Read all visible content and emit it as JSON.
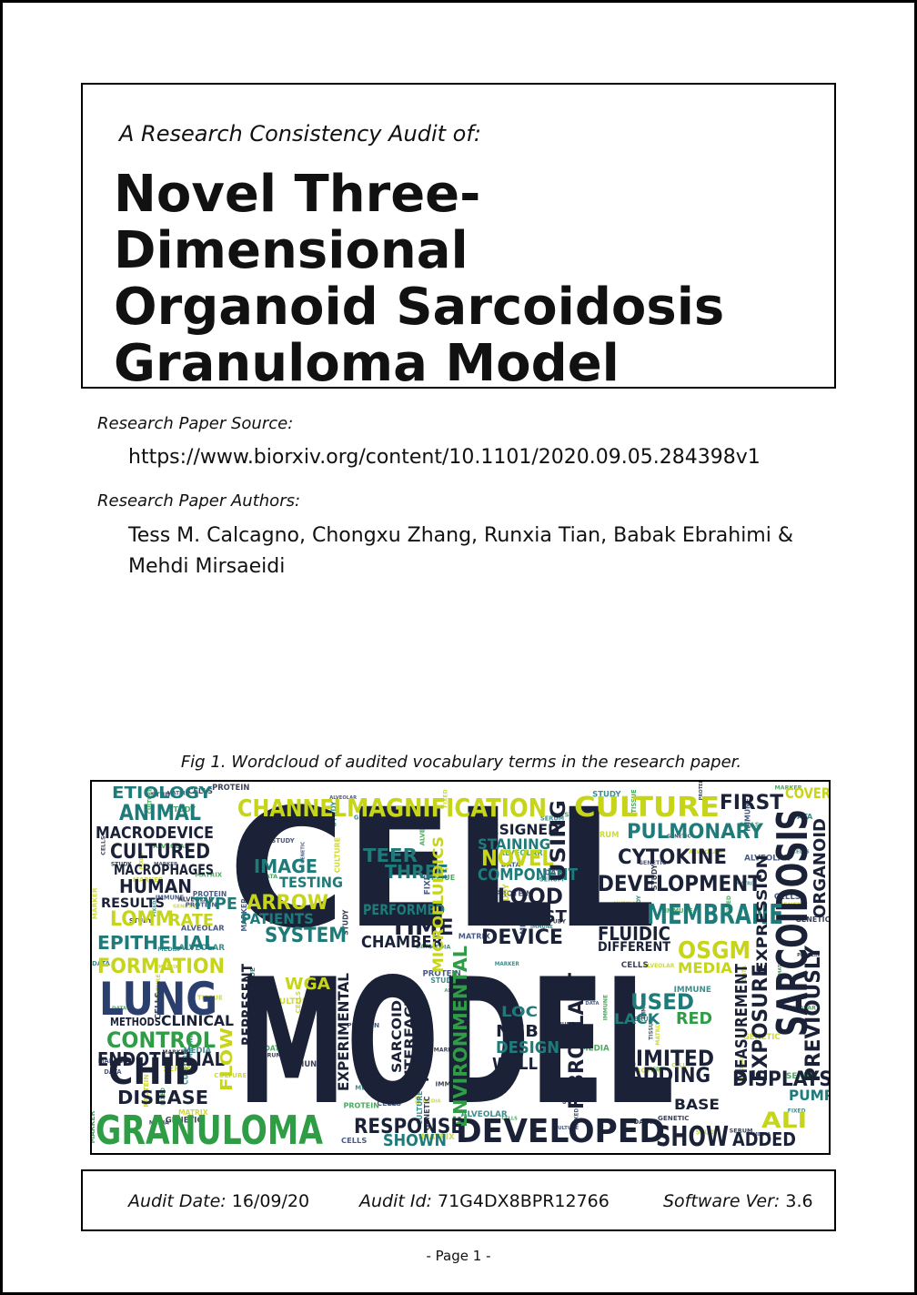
{
  "header": {
    "audit_of": "A Research Consistency Audit of:",
    "title_lines": [
      "Novel Three-Dimensional",
      "Organoid Sarcoidosis",
      "Granuloma Model"
    ]
  },
  "source": {
    "label": "Research Paper Source:",
    "url": "https://www.biorxiv.org/content/10.1101/2020.09.05.284398v1"
  },
  "authors": {
    "label": "Research Paper Authors:",
    "line1": "Tess M. Calcagno, Chongxu Zhang, Runxia Tian, Babak Ebrahimi &",
    "line2": "Mehdi Mirsaeidi"
  },
  "figure": {
    "caption": "Fig 1. Wordcloud of audited vocabulary terms in the research paper.",
    "colors": {
      "dark": "#1b2238",
      "teal": "#1f7b7a",
      "green": "#2f9c46",
      "yellow": "#c6d41a",
      "navy": "#2a3f6e"
    },
    "words": [
      {
        "text": "CELL",
        "color": "dark",
        "size": 2.0
      },
      {
        "text": "MODEL",
        "color": "dark",
        "size": 2.0
      },
      {
        "text": "SARCOIDOSIS",
        "color": "dark",
        "size": 1.0
      },
      {
        "text": "GRANULOMA",
        "color": "green",
        "size": 1.0
      },
      {
        "text": "LUNG",
        "color": "navy",
        "size": 1.0
      },
      {
        "text": "DEVELOPED",
        "color": "dark",
        "size": 1.0
      },
      {
        "text": "MAGNIFICATION",
        "color": "yellow",
        "size": 1.0
      },
      {
        "text": "CHANNEL",
        "color": "yellow",
        "size": 1.0
      },
      {
        "text": "CULTURE",
        "color": "yellow",
        "size": 1.0
      },
      {
        "text": "MEMBRANE",
        "color": "teal",
        "size": 1.0
      },
      {
        "text": "DEVELOPMENT",
        "color": "dark",
        "size": 1.0
      },
      {
        "text": "PULMONARY",
        "color": "teal",
        "size": 1.0
      },
      {
        "text": "CYTOKINE",
        "color": "dark",
        "size": 1.0
      },
      {
        "text": "CHIP",
        "color": "dark",
        "size": 1.0
      },
      {
        "text": "ETIOLOGY",
        "color": "teal",
        "size": 1.0
      },
      {
        "text": "ANIMAL",
        "color": "teal",
        "size": 1.0
      },
      {
        "text": "MACRODEVICE",
        "color": "dark",
        "size": 1.0
      },
      {
        "text": "CULTURED",
        "color": "dark",
        "size": 1.0
      },
      {
        "text": "MACROPHAGES",
        "color": "dark",
        "size": 1.0
      },
      {
        "text": "HUMAN",
        "color": "dark",
        "size": 1.0
      },
      {
        "text": "RESULTS",
        "color": "dark",
        "size": 1.0
      },
      {
        "text": "TYPE",
        "color": "teal",
        "size": 1.0
      },
      {
        "text": "LOMM",
        "color": "yellow",
        "size": 1.0
      },
      {
        "text": "RATE",
        "color": "yellow",
        "size": 1.0
      },
      {
        "text": "EPITHELIAL",
        "color": "teal",
        "size": 1.0
      },
      {
        "text": "FORMATION",
        "color": "yellow",
        "size": 1.0
      },
      {
        "text": "CONTROL",
        "color": "green",
        "size": 1.0
      },
      {
        "text": "ENDOTHELIAL",
        "color": "dark",
        "size": 1.0
      },
      {
        "text": "DISEASE",
        "color": "dark",
        "size": 1.0
      },
      {
        "text": "CLINICAL",
        "color": "dark",
        "size": 1.0
      },
      {
        "text": "METHODS",
        "color": "dark",
        "size": 1.0
      },
      {
        "text": "IMAGE",
        "color": "teal",
        "size": 1.0
      },
      {
        "text": "TESTING",
        "color": "teal",
        "size": 1.0
      },
      {
        "text": "ARROW",
        "color": "yellow",
        "size": 1.0
      },
      {
        "text": "PATIENTS",
        "color": "teal",
        "size": 1.0
      },
      {
        "text": "SYSTEM",
        "color": "teal",
        "size": 1.0
      },
      {
        "text": "TEER",
        "color": "teal",
        "size": 1.0
      },
      {
        "text": "THREE",
        "color": "teal",
        "size": 1.0
      },
      {
        "text": "PERFORMED",
        "color": "teal",
        "size": 1.0
      },
      {
        "text": "TIME",
        "color": "dark",
        "size": 1.0
      },
      {
        "text": "CHAMBER",
        "color": "dark",
        "size": 1.0
      },
      {
        "text": "NOVEL",
        "color": "yellow",
        "size": 1.0
      },
      {
        "text": "COMPONENT",
        "color": "teal",
        "size": 1.0
      },
      {
        "text": "BLOOD",
        "color": "dark",
        "size": 1.0
      },
      {
        "text": "MIMIC",
        "color": "dark",
        "size": 1.0
      },
      {
        "text": "TEST",
        "color": "dark",
        "size": 1.0
      },
      {
        "text": "DEVICE",
        "color": "dark",
        "size": 1.0
      },
      {
        "text": "DESIGNED",
        "color": "dark",
        "size": 1.0
      },
      {
        "text": "STAINING",
        "color": "teal",
        "size": 1.0
      },
      {
        "text": "USING",
        "color": "dark",
        "size": 1.0
      },
      {
        "text": "FIRST",
        "color": "dark",
        "size": 1.0
      },
      {
        "text": "COVER",
        "color": "yellow",
        "size": 1.0
      },
      {
        "text": "ORGANOID",
        "color": "dark",
        "size": 1.0
      },
      {
        "text": "EXPRESSION",
        "color": "dark",
        "size": 1.0
      },
      {
        "text": "FLUIDIC",
        "color": "dark",
        "size": 1.0
      },
      {
        "text": "DIFFERENT",
        "color": "dark",
        "size": 1.0
      },
      {
        "text": "OSGM",
        "color": "yellow",
        "size": 1.0
      },
      {
        "text": "MEDIA",
        "color": "yellow",
        "size": 1.0
      },
      {
        "text": "EXPOSURE",
        "color": "dark",
        "size": 1.0
      },
      {
        "text": "PREVIOUSLY",
        "color": "dark",
        "size": 1.0
      },
      {
        "text": "MEASUREMENT",
        "color": "dark",
        "size": 1.0
      },
      {
        "text": "USED",
        "color": "teal",
        "size": 1.0
      },
      {
        "text": "RED",
        "color": "green",
        "size": 1.0
      },
      {
        "text": "LACK",
        "color": "teal",
        "size": 1.0
      },
      {
        "text": "LIMITED",
        "color": "dark",
        "size": 1.0
      },
      {
        "text": "ADDING",
        "color": "dark",
        "size": 1.0
      },
      {
        "text": "DISPLAYS",
        "color": "dark",
        "size": 1.0
      },
      {
        "text": "PUMP",
        "color": "teal",
        "size": 1.0
      },
      {
        "text": "ALI",
        "color": "yellow",
        "size": 1.0
      },
      {
        "text": "ADDED",
        "color": "dark",
        "size": 1.0
      },
      {
        "text": "SHOW",
        "color": "dark",
        "size": 1.0
      },
      {
        "text": "BASE",
        "color": "dark",
        "size": 1.0
      },
      {
        "text": "NHBE",
        "color": "dark",
        "size": 1.0
      },
      {
        "text": "LOC",
        "color": "teal",
        "size": 1.0
      },
      {
        "text": "DESIGN",
        "color": "teal",
        "size": 1.0
      },
      {
        "text": "WELL",
        "color": "dark",
        "size": 1.0
      },
      {
        "text": "FIBROBLAST",
        "color": "dark",
        "size": 1.0
      },
      {
        "text": "ENVIRONMENTAL",
        "color": "green",
        "size": 1.0
      },
      {
        "text": "MICROFLUIDICS",
        "color": "yellow",
        "size": 1.0
      },
      {
        "text": "EXPERIMENTAL",
        "color": "dark",
        "size": 1.0
      },
      {
        "text": "INTERFACE",
        "color": "dark",
        "size": 1.0
      },
      {
        "text": "RESPONSE",
        "color": "dark",
        "size": 1.0
      },
      {
        "text": "SHOWN",
        "color": "teal",
        "size": 1.0
      },
      {
        "text": "FLOW",
        "color": "yellow",
        "size": 1.0
      },
      {
        "text": "WGA",
        "color": "yellow",
        "size": 1.0
      },
      {
        "text": "REPRESENT",
        "color": "dark",
        "size": 1.0
      },
      {
        "text": "SARCOID",
        "color": "dark",
        "size": 1.0
      },
      {
        "text": "MULTIPLE",
        "color": "dark",
        "size": 1.0
      }
    ]
  },
  "footer": {
    "audit_date_label": "Audit Date:",
    "audit_date": "16/09/20",
    "audit_id_label": "Audit Id:",
    "audit_id": "71G4DX8BPR12766",
    "software_label": "Software Ver:",
    "software_ver": "3.6"
  },
  "page": {
    "number": "-  Page 1  -"
  }
}
